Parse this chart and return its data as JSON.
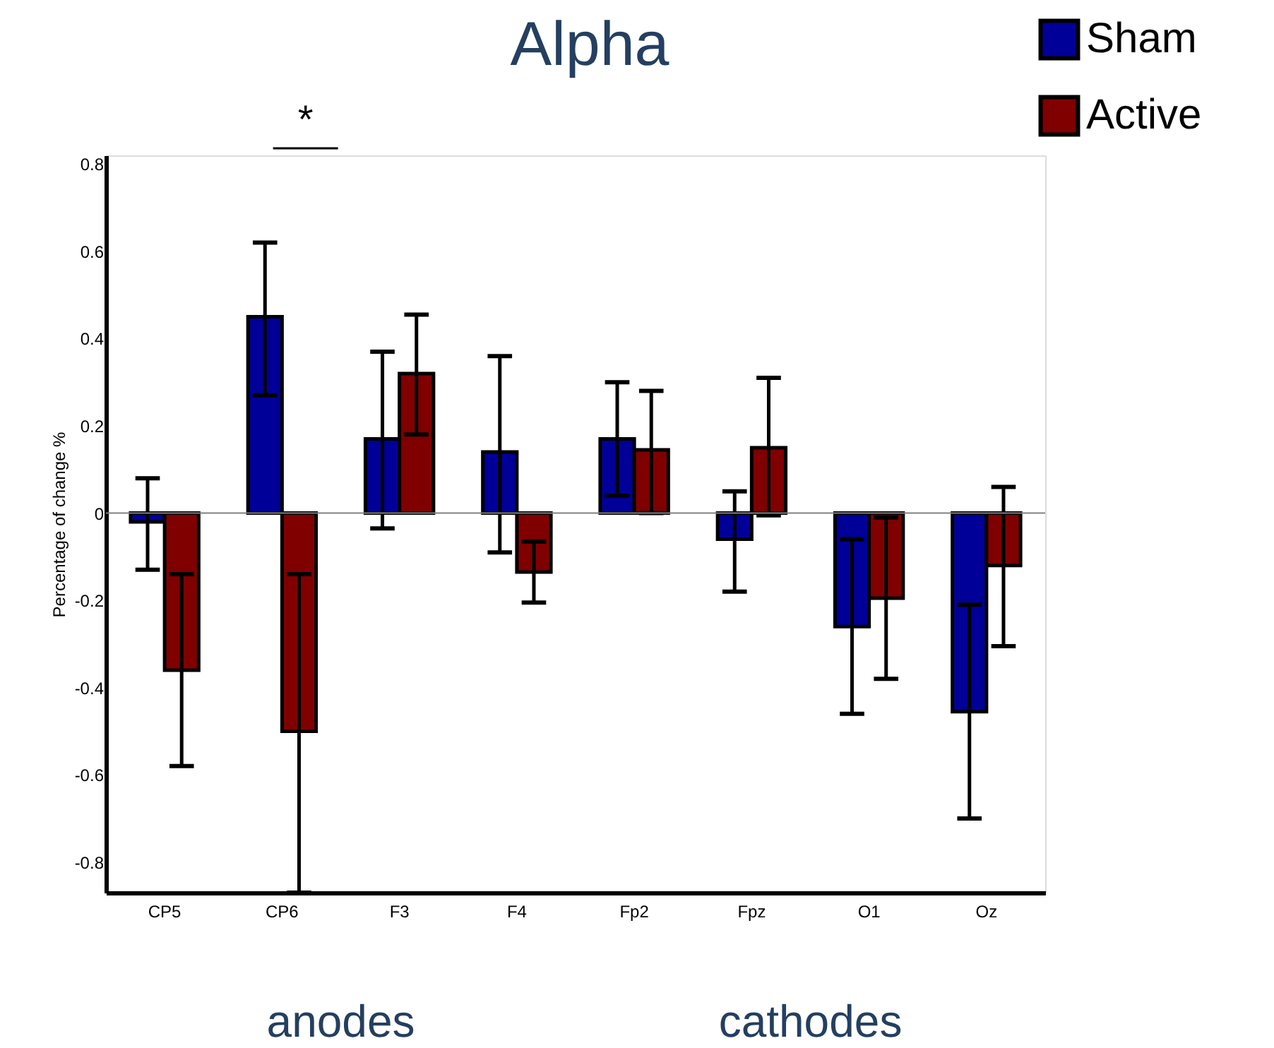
{
  "chart_data": {
    "type": "bar",
    "title": "Alpha",
    "ylabel": "Percentage of change %",
    "categories": [
      "CP5",
      "CP6",
      "F3",
      "F4",
      "Fp2",
      "Fpz",
      "O1",
      "Oz"
    ],
    "series": [
      {
        "name": "Sham",
        "color": "#000099",
        "values": [
          -0.02,
          0.45,
          0.17,
          0.14,
          0.17,
          -0.06,
          -0.26,
          -0.455
        ],
        "errors": [
          [
            -0.13,
            0.08
          ],
          [
            0.27,
            0.62
          ],
          [
            -0.035,
            0.37
          ],
          [
            -0.09,
            0.36
          ],
          [
            0.04,
            0.3
          ],
          [
            -0.18,
            0.05
          ],
          [
            -0.46,
            -0.06
          ],
          [
            -0.7,
            -0.21
          ]
        ]
      },
      {
        "name": "Active",
        "color": "#800000",
        "values": [
          -0.36,
          -0.5,
          0.32,
          -0.135,
          0.145,
          0.15,
          -0.195,
          -0.12
        ],
        "errors": [
          [
            -0.58,
            -0.14
          ],
          [
            -0.87,
            -0.14
          ],
          [
            0.18,
            0.455
          ],
          [
            -0.205,
            -0.065
          ],
          [
            0.0,
            0.28
          ],
          [
            -0.005,
            0.31
          ],
          [
            -0.38,
            -0.01
          ],
          [
            -0.305,
            0.06
          ]
        ]
      }
    ],
    "ylim": [
      -0.87,
      0.82
    ],
    "yticks": [
      -0.8,
      -0.6,
      -0.4,
      -0.2,
      0,
      0.2,
      0.4,
      0.6,
      0.8
    ],
    "ref_lines": [
      {
        "axis": "y",
        "value": 0,
        "color": "#808080"
      }
    ],
    "annotations": [
      "*",
      "anodes",
      "cathodes"
    ],
    "grid": false,
    "legend": "top right"
  }
}
